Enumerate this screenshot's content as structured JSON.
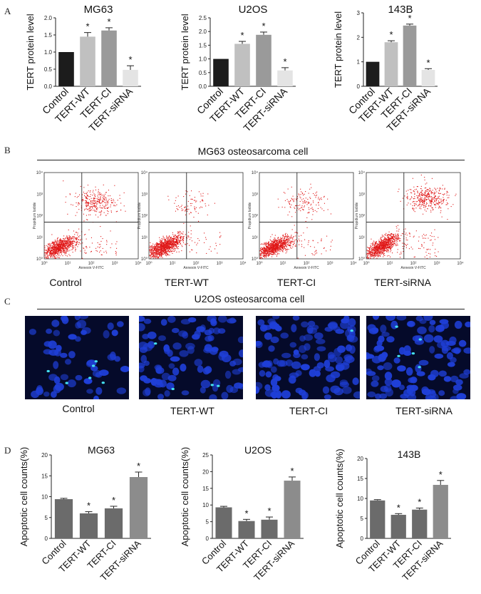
{
  "panels": {
    "A": "A",
    "B": "B",
    "C": "C",
    "D": "D"
  },
  "sections": {
    "B_title": "MG63 osteosarcoma cell",
    "C_title": "U2OS osteosarcoma cell"
  },
  "colors": {
    "control_bar": "#1c1c1c",
    "wt_bar": "#c0c0c0",
    "ci_bar": "#9a9a9a",
    "sirna_bar": "#e4e4e4",
    "apoptosis_bar": "#6b6b6b",
    "apoptosis_sirna_bar": "#8c8c8c",
    "scatter_dot": "#e01818",
    "nuclei": "#1f3fd8",
    "apoptotic_nuclei": "#44e0f0",
    "tile_bg": "#050a2a"
  },
  "chart_data": [
    {
      "id": "A-MG63",
      "type": "bar",
      "title": "MG63",
      "ylabel": "TERT protein level",
      "categories": [
        "Control",
        "TERT-WT",
        "TERT-CI",
        "TERT-siRNA"
      ],
      "values": [
        1.0,
        1.45,
        1.63,
        0.48
      ],
      "errors": [
        0,
        0.12,
        0.08,
        0.12
      ],
      "significance": [
        "",
        "*",
        "*",
        "*"
      ],
      "ylim": [
        0,
        2.0
      ],
      "yticks": [
        "0.0",
        "0.5",
        "1.0",
        "1.5",
        "2.0"
      ],
      "yticks_values": [
        0,
        0.5,
        1.0,
        1.5,
        2.0
      ],
      "palette": "tert"
    },
    {
      "id": "A-U2OS",
      "type": "bar",
      "title": "U2OS",
      "ylabel": "TERT protein level",
      "categories": [
        "Control",
        "TERT-WT",
        "TERT-CI",
        "TERT-siRNA"
      ],
      "values": [
        1.0,
        1.55,
        1.88,
        0.58
      ],
      "errors": [
        0,
        0.09,
        0.1,
        0.1
      ],
      "significance": [
        "",
        "*",
        "*",
        "*"
      ],
      "ylim": [
        0,
        2.5
      ],
      "yticks": [
        "0.0",
        "0.5",
        "1.0",
        "1.5",
        "2.0",
        "2.5"
      ],
      "yticks_values": [
        0,
        0.5,
        1.0,
        1.5,
        2.0,
        2.5
      ],
      "palette": "tert"
    },
    {
      "id": "A-143B",
      "type": "bar",
      "title": "143B",
      "ylabel": "TERT protein level",
      "categories": [
        "Control",
        "TERT-WT",
        "TERT-CI",
        "TERT-siRNA"
      ],
      "values": [
        1.0,
        1.8,
        2.48,
        0.67
      ],
      "errors": [
        0,
        0.06,
        0.06,
        0.05
      ],
      "significance": [
        "",
        "*",
        "*",
        "*"
      ],
      "ylim": [
        0,
        3
      ],
      "yticks": [
        "0",
        "1",
        "2",
        "3"
      ],
      "yticks_values": [
        0,
        1,
        2,
        3
      ],
      "palette": "tert"
    },
    {
      "id": "D-MG63",
      "type": "bar",
      "title": "MG63",
      "ylabel": "Apoptotic cell counts(%)",
      "categories": [
        "Control",
        "TERT-WT",
        "TERT-CI",
        "TERT-siRNA"
      ],
      "values": [
        9.4,
        6.0,
        7.2,
        14.7
      ],
      "errors": [
        0.2,
        0.4,
        0.5,
        1.2
      ],
      "significance": [
        "",
        "*",
        "*",
        "*"
      ],
      "ylim": [
        0,
        20
      ],
      "yticks": [
        "0",
        "5",
        "10",
        "15",
        "20"
      ],
      "yticks_values": [
        0,
        5,
        10,
        15,
        20
      ],
      "palette": "apoptosis"
    },
    {
      "id": "D-U2OS",
      "type": "bar",
      "title": "U2OS",
      "ylabel": "Apoptotic cell counts(%)",
      "categories": [
        "Control",
        "TERT-WT",
        "TERT-CI",
        "TERT-siRNA"
      ],
      "values": [
        9.3,
        5.2,
        5.6,
        17.3
      ],
      "errors": [
        0.3,
        0.5,
        0.8,
        1.1
      ],
      "significance": [
        "",
        "*",
        "*",
        "*"
      ],
      "ylim": [
        0,
        25
      ],
      "yticks": [
        "0",
        "5",
        "10",
        "15",
        "20",
        "25"
      ],
      "yticks_values": [
        0,
        5,
        10,
        15,
        20,
        25
      ],
      "palette": "apoptosis"
    },
    {
      "id": "D-143B",
      "type": "bar",
      "title": "143B",
      "ylabel": "Apoptotic cell counts(%)",
      "categories": [
        "Control",
        "TERT-WT",
        "TERT-CI",
        "TERT-siRNA"
      ],
      "values": [
        9.5,
        5.9,
        7.2,
        13.4
      ],
      "errors": [
        0.2,
        0.3,
        0.4,
        1.1
      ],
      "significance": [
        "",
        "*",
        "*",
        "*"
      ],
      "ylim": [
        0,
        20
      ],
      "yticks": [
        "0",
        "5",
        "10",
        "15",
        "20"
      ],
      "yticks_values": [
        0,
        5,
        10,
        15,
        20
      ],
      "palette": "apoptosis"
    },
    {
      "id": "B-flow",
      "type": "scatter",
      "title": "MG63 osteosarcoma cell",
      "xlabel": "Annexin V-FITC",
      "ylabel": "Propidium Iodide",
      "xticks": [
        "10⁰",
        "10¹",
        "10²",
        "10³",
        "10⁴"
      ],
      "yticks": [
        "10⁰",
        "10¹",
        "10²",
        "10³",
        "10⁴"
      ],
      "xlim_log10": [
        0,
        4
      ],
      "ylim_log10": [
        0,
        4
      ],
      "gate_log10": [
        1.6,
        1.7
      ],
      "samples": [
        {
          "label": "Control",
          "upper_right_fraction": 0.25,
          "density": "high"
        },
        {
          "label": "TERT-WT",
          "upper_right_fraction": 0.08,
          "density": "high"
        },
        {
          "label": "TERT-CI",
          "upper_right_fraction": 0.12,
          "density": "high"
        },
        {
          "label": "TERT-siRNA",
          "upper_right_fraction": 0.3,
          "density": "high"
        }
      ]
    }
  ],
  "microscopy": {
    "labels": [
      "Control",
      "TERT-WT",
      "TERT-CI",
      "TERT-siRNA"
    ]
  }
}
